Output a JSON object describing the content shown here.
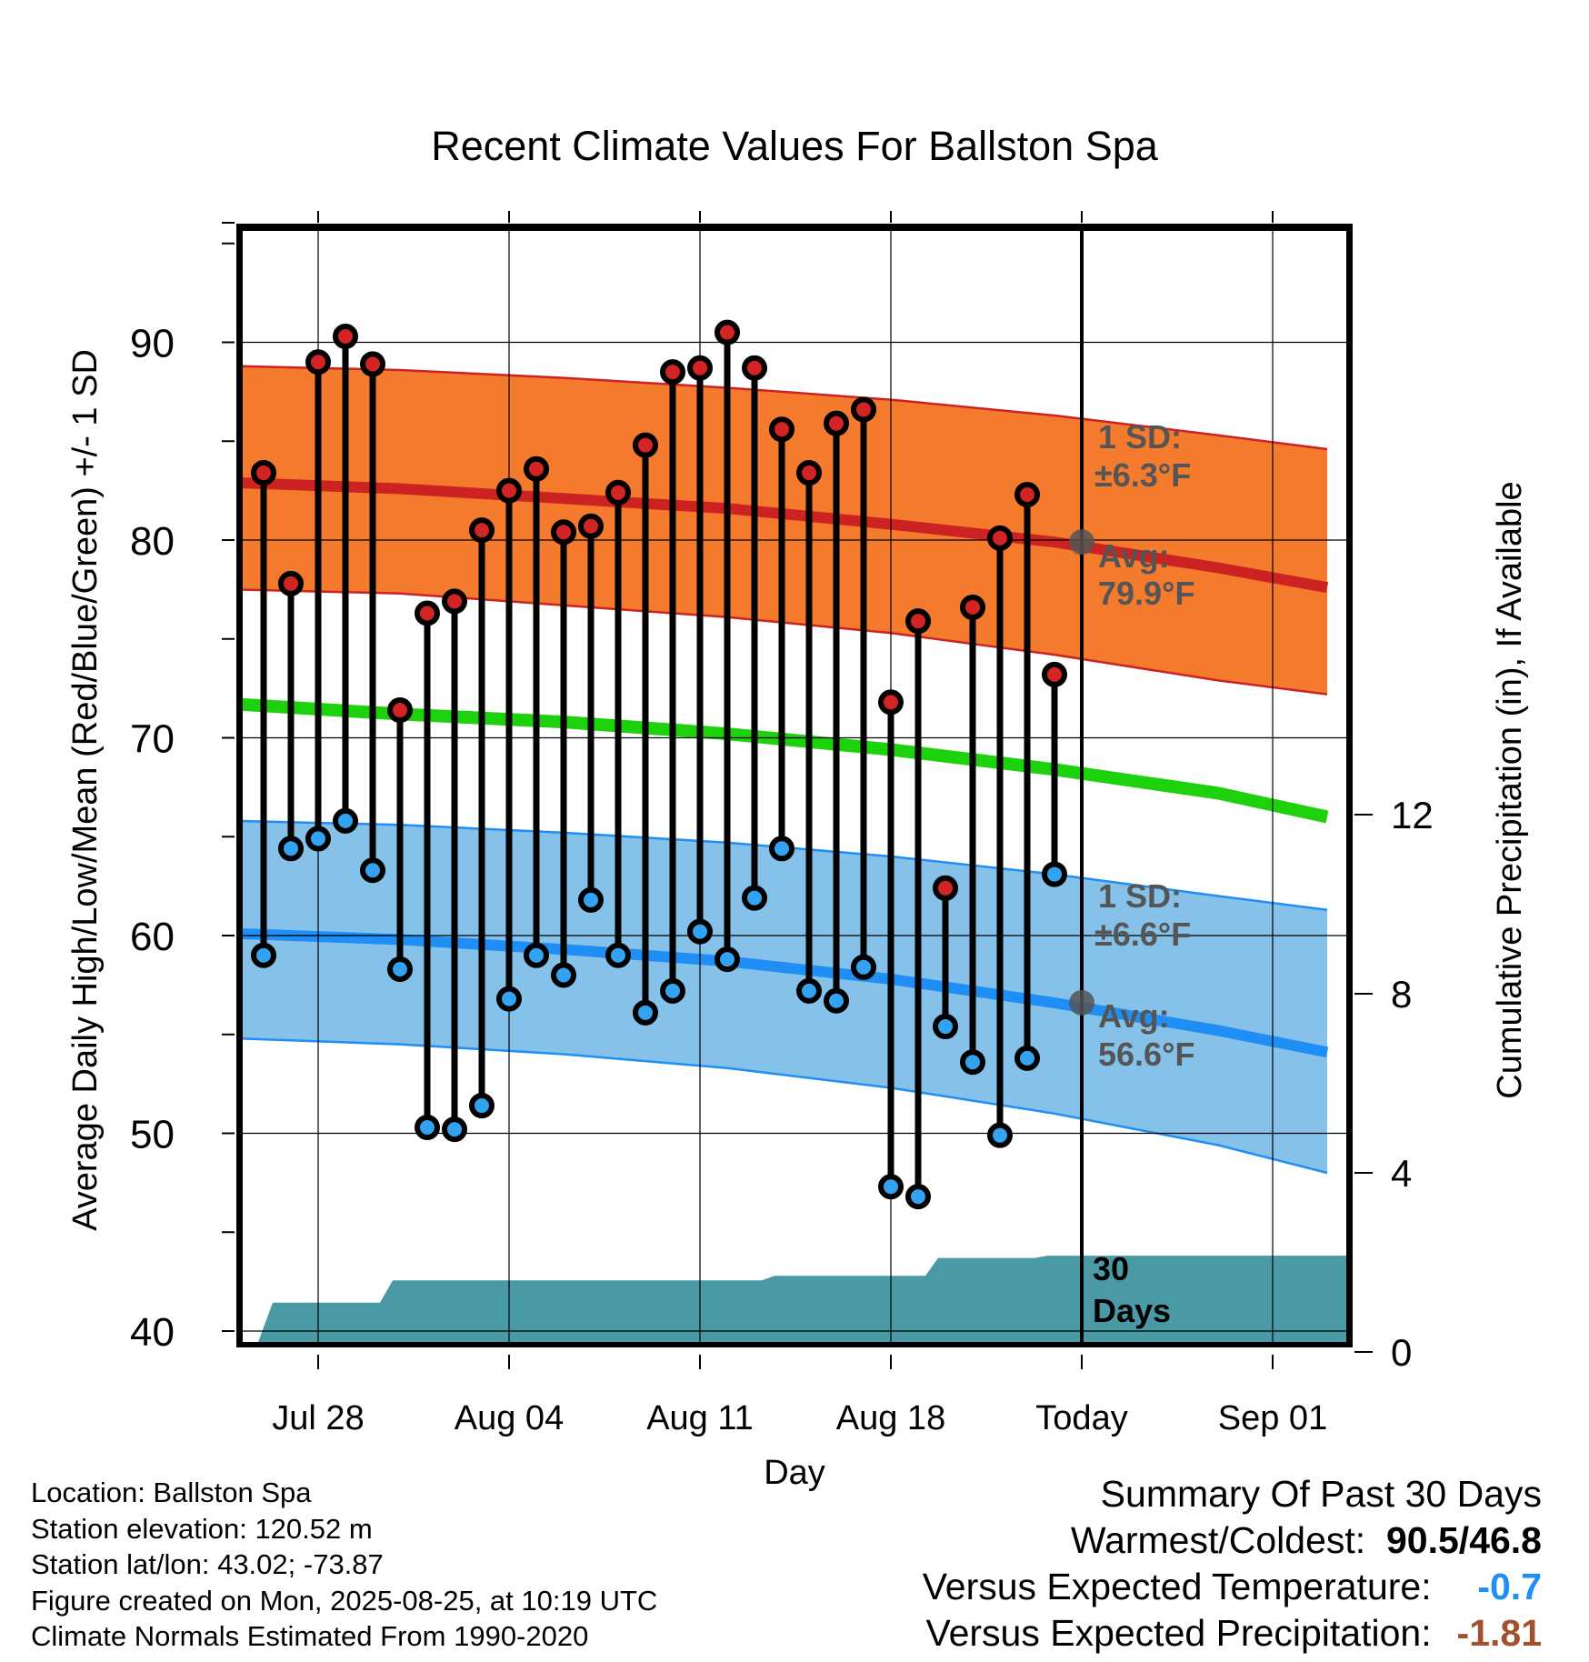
{
  "chart_data": {
    "type": "line",
    "title": "Recent Climate Values For Ballston Spa",
    "xlabel": "Day",
    "ylabel": "Average Daily High/Low/Mean (Red/Blue/Green) +/- 1 SD",
    "y2label": "Cumulative Precipitation (in), If Available",
    "ylim": [
      39,
      96
    ],
    "y2lim": [
      0,
      15.6
    ],
    "yticks": [
      "40",
      "50",
      "60",
      "70",
      "80",
      "90"
    ],
    "y2ticks": [
      "0",
      "4",
      "8",
      "12"
    ],
    "xticks": [
      "Jul 28",
      "Aug 04",
      "Aug 11",
      "Aug 18",
      "Today",
      "Sep 01"
    ],
    "grid": true,
    "x_dates": [
      "2025-07-26",
      "2025-07-27",
      "2025-07-28",
      "2025-07-29",
      "2025-07-30",
      "2025-07-31",
      "2025-08-01",
      "2025-08-02",
      "2025-08-03",
      "2025-08-04",
      "2025-08-05",
      "2025-08-06",
      "2025-08-07",
      "2025-08-08",
      "2025-08-09",
      "2025-08-10",
      "2025-08-11",
      "2025-08-12",
      "2025-08-13",
      "2025-08-14",
      "2025-08-15",
      "2025-08-16",
      "2025-08-17",
      "2025-08-18",
      "2025-08-19",
      "2025-08-20",
      "2025-08-21",
      "2025-08-22",
      "2025-08-23",
      "2025-08-24"
    ],
    "observed_high": [
      83.4,
      77.8,
      89.0,
      90.3,
      88.9,
      71.4,
      76.3,
      76.9,
      80.5,
      82.5,
      83.6,
      80.4,
      80.7,
      82.4,
      84.8,
      88.5,
      88.7,
      90.5,
      88.7,
      85.6,
      83.4,
      85.9,
      86.6,
      71.8,
      75.9,
      62.4,
      76.6,
      80.1,
      82.3,
      73.2
    ],
    "observed_low": [
      59.0,
      64.4,
      64.9,
      65.8,
      63.3,
      58.3,
      50.3,
      50.2,
      51.4,
      56.8,
      59.0,
      58.0,
      61.8,
      59.0,
      56.1,
      57.2,
      60.2,
      58.8,
      61.9,
      64.4,
      57.2,
      56.7,
      58.4,
      47.3,
      46.8,
      55.4,
      53.6,
      49.9,
      53.8,
      63.1
    ],
    "normal_dates": [
      "2025-07-25",
      "2025-07-31",
      "2025-08-06",
      "2025-08-12",
      "2025-08-18",
      "2025-08-24",
      "2025-08-30",
      "2025-09-03"
    ],
    "normal_high": [
      82.9,
      82.6,
      82.1,
      81.6,
      80.8,
      79.9,
      78.6,
      77.6
    ],
    "normal_high_plus_1sd": [
      88.8,
      88.6,
      88.2,
      87.7,
      87.1,
      86.3,
      85.3,
      84.6
    ],
    "normal_high_minus_1sd": [
      77.5,
      77.3,
      76.7,
      76.1,
      75.3,
      74.2,
      72.9,
      72.2
    ],
    "normal_mean": [
      71.7,
      71.2,
      70.8,
      70.2,
      69.4,
      68.4,
      67.2,
      66.0
    ],
    "normal_low": [
      60.1,
      59.8,
      59.3,
      58.7,
      57.8,
      56.6,
      55.2,
      54.1
    ],
    "normal_low_plus_1sd": [
      65.8,
      65.6,
      65.2,
      64.7,
      64.0,
      63.1,
      62.0,
      61.3
    ],
    "normal_low_minus_1sd": [
      54.8,
      54.5,
      54.0,
      53.3,
      52.3,
      51.0,
      49.4,
      48.0
    ],
    "cumulative_precip_dates": [
      "2025-07-26",
      "2025-07-27",
      "2025-07-28",
      "2025-07-29",
      "2025-07-30",
      "2025-07-31",
      "2025-08-01",
      "2025-08-02",
      "2025-08-03",
      "2025-08-04",
      "2025-08-05",
      "2025-08-06",
      "2025-08-07",
      "2025-08-08",
      "2025-08-09",
      "2025-08-10",
      "2025-08-11",
      "2025-08-12",
      "2025-08-13",
      "2025-08-14",
      "2025-08-15",
      "2025-08-16",
      "2025-08-17",
      "2025-08-18",
      "2025-08-19",
      "2025-08-20",
      "2025-08-21",
      "2025-08-22",
      "2025-08-23",
      "2025-08-24",
      "2025-08-25",
      "2025-09-03"
    ],
    "cumulative_precip": [
      0.0,
      1.1,
      1.1,
      1.1,
      1.1,
      1.6,
      1.6,
      1.6,
      1.6,
      1.6,
      1.6,
      1.6,
      1.6,
      1.6,
      1.6,
      1.6,
      1.6,
      1.6,
      1.6,
      1.7,
      1.7,
      1.7,
      1.7,
      1.7,
      1.7,
      2.1,
      2.1,
      2.1,
      2.1,
      2.15,
      2.15,
      2.15
    ],
    "annotations": {
      "high_sd": "1 SD:",
      "high_sd_value": "±6.3°F",
      "high_avg": "Avg:",
      "high_avg_value": "79.9°F",
      "low_sd": "1 SD:",
      "low_sd_value": "±6.6°F",
      "low_avg": "Avg:",
      "low_avg_value": "56.6°F",
      "precip_days": "30",
      "precip_days_unit": "Days"
    },
    "colors": {
      "high_band": "#f47a2e",
      "high_line": "#cc2222",
      "low_band": "#85c1e8",
      "low_line": "#1f8ef5",
      "mean_line": "#1ed10d",
      "precip": "#4a9aa5",
      "high_marker": "#d22424",
      "low_marker": "#33a2f0",
      "annotation": "#555555"
    }
  },
  "footer": {
    "location": "Location: Ballston Spa",
    "elevation": "Station elevation: 120.52 m",
    "latlon": "Station lat/lon: 43.02; -73.87",
    "created": "Figure created on Mon, 2025-08-25, at 10:19 UTC",
    "normals": "Climate Normals Estimated From 1990-2020"
  },
  "summary": {
    "title": "Summary Of Past 30 Days",
    "warm_cold_label": "Warmest/Coldest:",
    "warm_value": "90.5",
    "slash": "/",
    "cold_value": "46.8",
    "temp_label": "Versus Expected Temperature:",
    "temp_value": "-0.7",
    "temp_color": "#1f8ef5",
    "precip_label": "Versus Expected Precipitation:",
    "precip_value": "-1.81",
    "precip_color": "#a0522d"
  }
}
